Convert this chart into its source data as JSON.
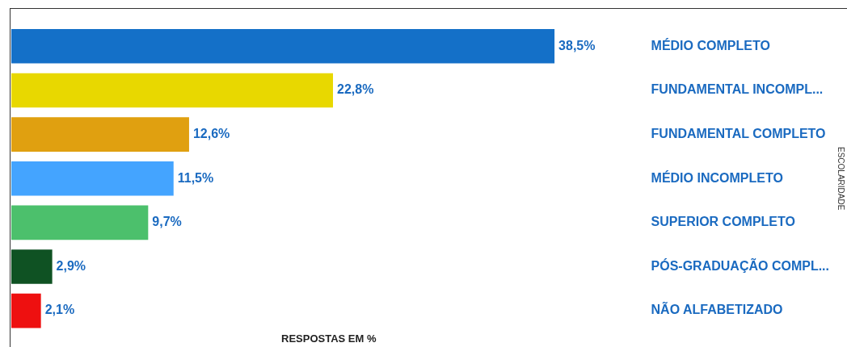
{
  "chart_data": {
    "type": "bar",
    "orientation": "horizontal",
    "xlabel": "RESPOSTAS EM %",
    "ylabel": "ESCOLARIDADE",
    "categories": [
      "MÉDIO COMPLETO",
      "FUNDAMENTAL INCOMPL...",
      "FUNDAMENTAL COMPLETO",
      "MÉDIO INCOMPLETO",
      "SUPERIOR COMPLETO",
      "PÓS-GRADUAÇÃO COMPL...",
      "NÃO ALFABETIZADO"
    ],
    "values": [
      38.5,
      22.8,
      12.6,
      11.5,
      9.7,
      2.9,
      2.1
    ],
    "colors": [
      "#1470c8",
      "#e8d800",
      "#e0a010",
      "#44a4ff",
      "#4cc06c",
      "#0f5223",
      "#ee1010"
    ],
    "value_labels": [
      "38,5%",
      "22,8%",
      "12,6%",
      "11,5%",
      "9,7%",
      "2,9%",
      "2,1%"
    ],
    "grid": false,
    "legend": false
  }
}
